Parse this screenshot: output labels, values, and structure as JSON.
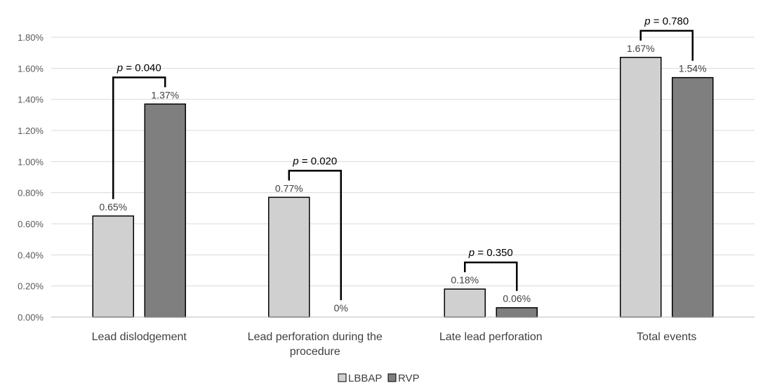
{
  "chart_data": {
    "type": "bar",
    "title": "",
    "xlabel": "",
    "ylabel": "",
    "categories": [
      [
        "Lead dislodgement"
      ],
      [
        "Lead perforation during the",
        "procedure"
      ],
      [
        "Late lead perforation"
      ],
      [
        "Total events"
      ]
    ],
    "series": [
      {
        "name": "LBBAP",
        "values": [
          0.65,
          0.77,
          0.18,
          1.67
        ],
        "labels": [
          "0.65%",
          "0.77%",
          "0.18%",
          "1.67%"
        ],
        "color": "#d0d0d0"
      },
      {
        "name": "RVP",
        "values": [
          1.37,
          0.0,
          0.06,
          1.54
        ],
        "labels": [
          "1.37%",
          "0%",
          "0.06%",
          "1.54%"
        ],
        "color": "#7f7f7f"
      }
    ],
    "ylim": [
      0,
      1.8
    ],
    "yticks": [
      0,
      0.2,
      0.4,
      0.6,
      0.8,
      1.0,
      1.2,
      1.4,
      1.6,
      1.8
    ],
    "ytick_labels": [
      "0.00%",
      "0.20%",
      "0.40%",
      "0.60%",
      "0.80%",
      "1.00%",
      "1.20%",
      "1.40%",
      "1.60%",
      "1.80%"
    ],
    "grid": true,
    "legend_position": "bottom-center",
    "pvalues": [
      {
        "p": "p",
        "rest": " = 0.040"
      },
      {
        "p": "p",
        "rest": " = 0.020"
      },
      {
        "p": "p",
        "rest": " = 0.350"
      },
      {
        "p": "p",
        "rest": " = 0.780"
      }
    ]
  }
}
